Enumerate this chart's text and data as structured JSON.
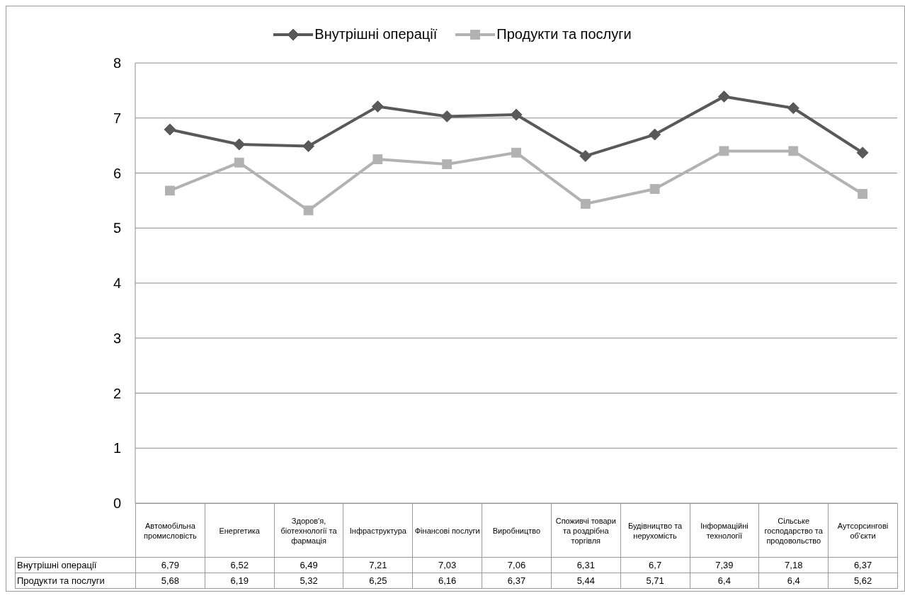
{
  "chart_data": {
    "type": "line",
    "categories": [
      "Автомобільна промисловість",
      "Енергетика",
      "Здоров'я, біотехнології та фармація",
      "Інфраструктура",
      "Фінансові послуги",
      "Виробництво",
      "Споживчі товари та роздрібна торгівля",
      "Будівництво та нерухомість",
      "Інформаційні технології",
      "Сільське господарство та продовольство",
      "Аутсорсингові об'єкти"
    ],
    "series": [
      {
        "name": "Внутрішні операції",
        "color": "#595959",
        "marker": "diamond",
        "values": [
          6.79,
          6.52,
          6.49,
          7.21,
          7.03,
          7.06,
          6.31,
          6.7,
          7.39,
          7.18,
          6.37
        ],
        "value_labels": [
          "6,79",
          "6,52",
          "6,49",
          "7,21",
          "7,03",
          "7,06",
          "6,31",
          "6,7",
          "7,39",
          "7,18",
          "6,37"
        ]
      },
      {
        "name": "Продукти та послуги",
        "color": "#b2b2b2",
        "marker": "square",
        "values": [
          5.68,
          6.19,
          5.32,
          6.25,
          6.16,
          6.37,
          5.44,
          5.71,
          6.4,
          6.4,
          5.62
        ],
        "value_labels": [
          "5,68",
          "6,19",
          "5,32",
          "6,25",
          "6,16",
          "6,37",
          "5,44",
          "5,71",
          "6,4",
          "6,4",
          "5,62"
        ]
      }
    ],
    "ylim": [
      0,
      8
    ],
    "yticks": [
      0,
      1,
      2,
      3,
      4,
      5,
      6,
      7,
      8
    ],
    "grid": "y",
    "legend": "top",
    "line_style": "solid"
  }
}
